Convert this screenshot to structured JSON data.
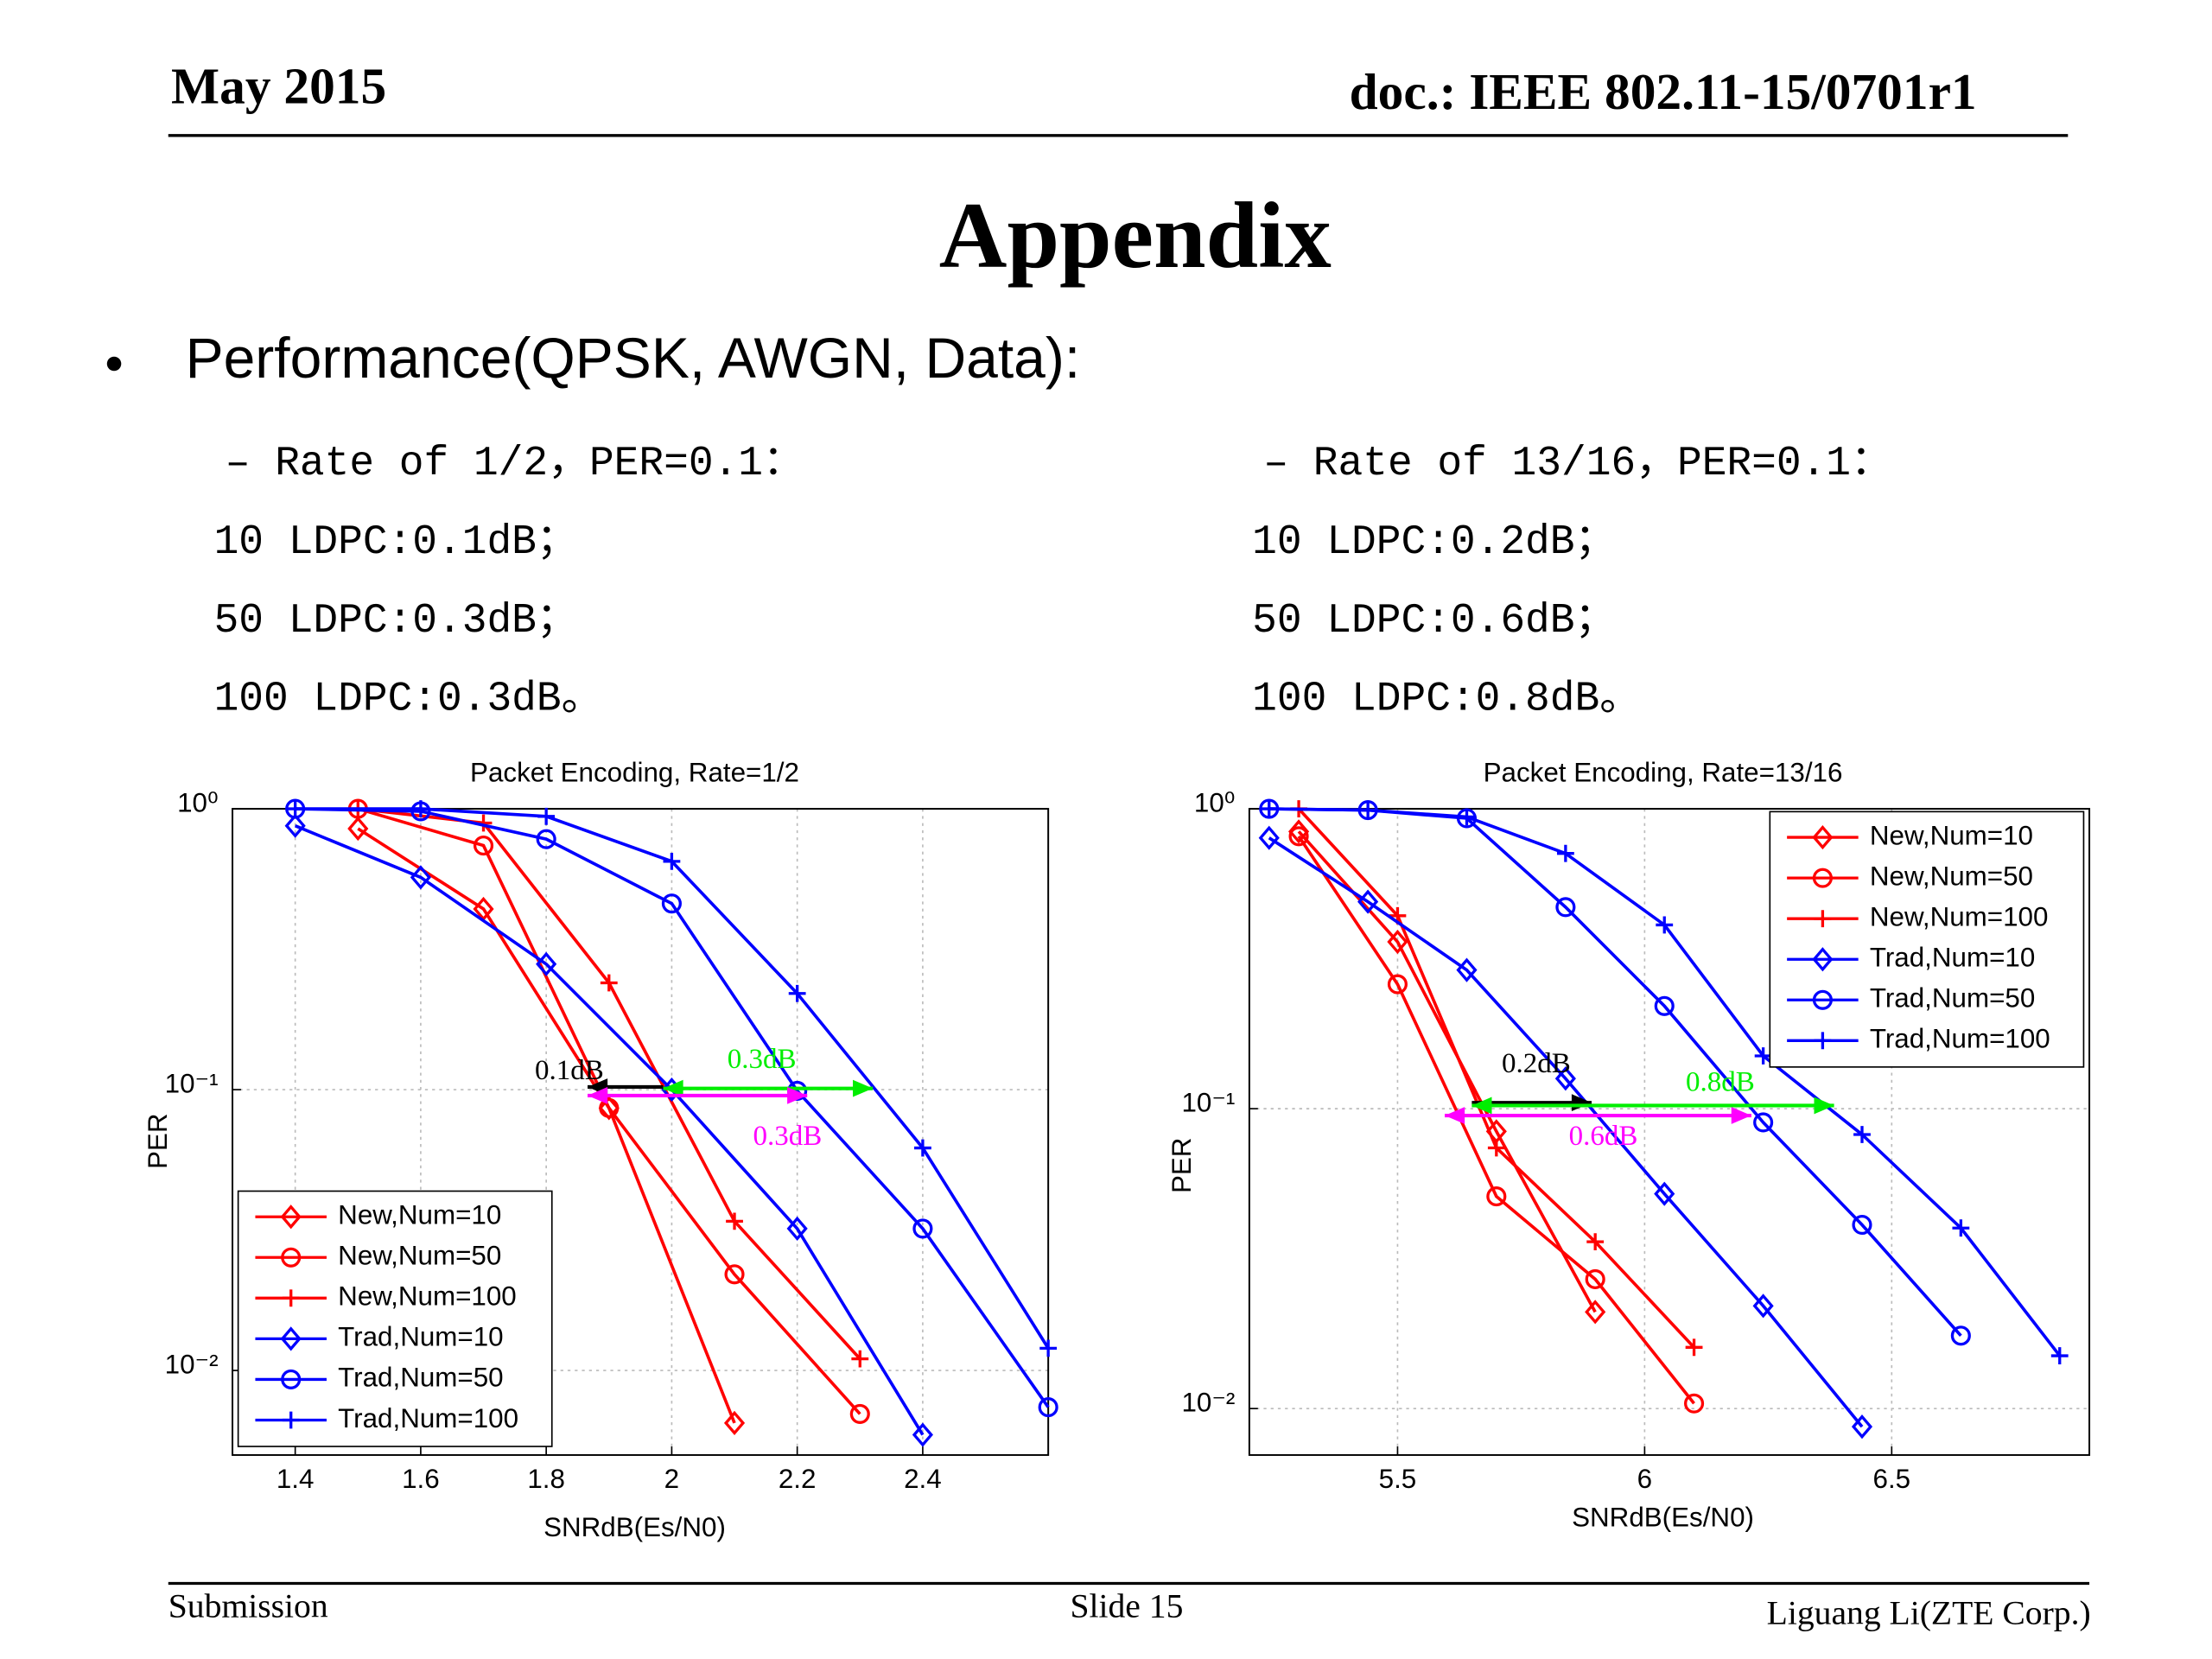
{
  "header": {
    "date": "May 2015",
    "doc": "doc.: IEEE 802.11-15/0701r1"
  },
  "title": "Appendix",
  "bullet": "Performance(QPSK, AWGN, Data):",
  "left_notes": [
    "– Rate of 1/2，PER=0.1：",
    "10 LDPC:0.1dB；",
    "50 LDPC:0.3dB；",
    "100 LDPC:0.3dB。"
  ],
  "right_notes": [
    "– Rate of 13/16，PER=0.1：",
    "10 LDPC:0.2dB；",
    "50 LDPC:0.6dB；",
    "100 LDPC:0.8dB。"
  ],
  "chart_data": [
    {
      "type": "line",
      "title": "Packet Encoding, Rate=1/2",
      "x_label": "SNRdB(Es/N0)",
      "y_label": "PER",
      "yscale": "log",
      "grid": true,
      "legend": "lower left",
      "xlim": [
        1.3,
        2.6
      ],
      "xticks": [
        1.4,
        1.6,
        1.8,
        2,
        2.2,
        2.4
      ],
      "ylim": [
        0.005,
        1
      ],
      "yticks": [
        {
          "value": 0.01,
          "label": "10⁻²"
        },
        {
          "value": 0.1,
          "label": "10⁻¹"
        },
        {
          "value": 1,
          "label": "10⁰"
        }
      ],
      "series": [
        {
          "name": "New,Num=10",
          "color": "#ff0000",
          "marker": "diamond",
          "x": [
            1.5,
            1.7,
            1.9,
            2.1
          ],
          "values": [
            0.85,
            0.44,
            0.086,
            0.0065
          ]
        },
        {
          "name": "New,Num=50",
          "color": "#ff0000",
          "marker": "circle",
          "x": [
            1.5,
            1.7,
            1.9,
            2.1,
            2.3
          ],
          "values": [
            1.0,
            0.74,
            0.086,
            0.022,
            0.007
          ]
        },
        {
          "name": "New,Num=100",
          "color": "#ff0000",
          "marker": "plus",
          "x": [
            1.5,
            1.7,
            1.9,
            2.1,
            2.3
          ],
          "values": [
            1.0,
            0.89,
            0.24,
            0.034,
            0.011
          ]
        },
        {
          "name": "Trad,Num=10",
          "color": "#0000ff",
          "marker": "diamond",
          "x": [
            1.4,
            1.6,
            1.8,
            2.0,
            2.2,
            2.4
          ],
          "values": [
            0.87,
            0.57,
            0.28,
            0.1,
            0.032,
            0.0059
          ]
        },
        {
          "name": "Trad,Num=50",
          "color": "#0000ff",
          "marker": "circle",
          "x": [
            1.4,
            1.6,
            1.8,
            2.0,
            2.2,
            2.4,
            2.6
          ],
          "values": [
            1.0,
            0.98,
            0.78,
            0.46,
            0.099,
            0.032,
            0.0074
          ]
        },
        {
          "name": "Trad,Num=100",
          "color": "#0000ff",
          "marker": "plus",
          "x": [
            1.4,
            1.6,
            1.8,
            2.0,
            2.2,
            2.4,
            2.6
          ],
          "values": [
            1.0,
            1.0,
            0.94,
            0.65,
            0.22,
            0.062,
            0.012
          ]
        }
      ],
      "annotations": [
        {
          "text": "0.1dB",
          "color": "#000000"
        },
        {
          "text": "0.3dB",
          "color": "#00ee00"
        },
        {
          "text": "0.3dB",
          "color": "#ff00ff"
        }
      ]
    },
    {
      "type": "line",
      "title": "Packet Encoding, Rate=13/16",
      "x_label": "SNRdB(Es/N0)",
      "y_label": "PER",
      "yscale": "log",
      "grid": true,
      "legend": "upper right",
      "xlim": [
        5.2,
        6.9
      ],
      "xticks": [
        5.5,
        6,
        6.5
      ],
      "ylim": [
        0.007,
        1
      ],
      "yticks": [
        {
          "value": 0.01,
          "label": "10⁻²"
        },
        {
          "value": 0.1,
          "label": "10⁻¹"
        },
        {
          "value": 1,
          "label": "10⁰"
        }
      ],
      "series": [
        {
          "name": "New,Num=10",
          "color": "#ff0000",
          "marker": "diamond",
          "x": [
            5.3,
            5.5,
            5.7,
            5.9
          ],
          "values": [
            0.84,
            0.36,
            0.084,
            0.021
          ]
        },
        {
          "name": "New,Num=50",
          "color": "#ff0000",
          "marker": "circle",
          "x": [
            5.3,
            5.5,
            5.7,
            5.9,
            6.1
          ],
          "values": [
            0.81,
            0.26,
            0.051,
            0.027,
            0.0104
          ]
        },
        {
          "name": "New,Num=100",
          "color": "#ff0000",
          "marker": "plus",
          "x": [
            5.3,
            5.5,
            5.7,
            5.9,
            6.1
          ],
          "values": [
            1.0,
            0.44,
            0.074,
            0.036,
            0.016
          ]
        },
        {
          "name": "Trad,Num=10",
          "color": "#0000ff",
          "marker": "diamond",
          "x": [
            5.24,
            5.44,
            5.64,
            5.84,
            6.04,
            6.24,
            6.44
          ],
          "values": [
            0.8,
            0.49,
            0.29,
            0.126,
            0.052,
            0.022,
            0.0087
          ]
        },
        {
          "name": "Trad,Num=50",
          "color": "#0000ff",
          "marker": "circle",
          "x": [
            5.24,
            5.44,
            5.64,
            5.84,
            6.04,
            6.24,
            6.44,
            6.64
          ],
          "values": [
            1.0,
            0.99,
            0.93,
            0.47,
            0.22,
            0.09,
            0.041,
            0.0175
          ]
        },
        {
          "name": "Trad,Num=100",
          "color": "#0000ff",
          "marker": "plus",
          "x": [
            5.24,
            5.44,
            5.64,
            5.84,
            6.04,
            6.24,
            6.44,
            6.64,
            6.84
          ],
          "values": [
            1.0,
            0.99,
            0.94,
            0.71,
            0.41,
            0.15,
            0.082,
            0.04,
            0.015
          ]
        }
      ],
      "annotations": [
        {
          "text": "0.2dB",
          "color": "#000000"
        },
        {
          "text": "0.8dB",
          "color": "#00ee00"
        },
        {
          "text": "0.6dB",
          "color": "#ff00ff"
        }
      ]
    }
  ],
  "footer": {
    "left": "Submission",
    "center": "Slide 15",
    "right": "Liguang Li(ZTE Corp.)"
  }
}
